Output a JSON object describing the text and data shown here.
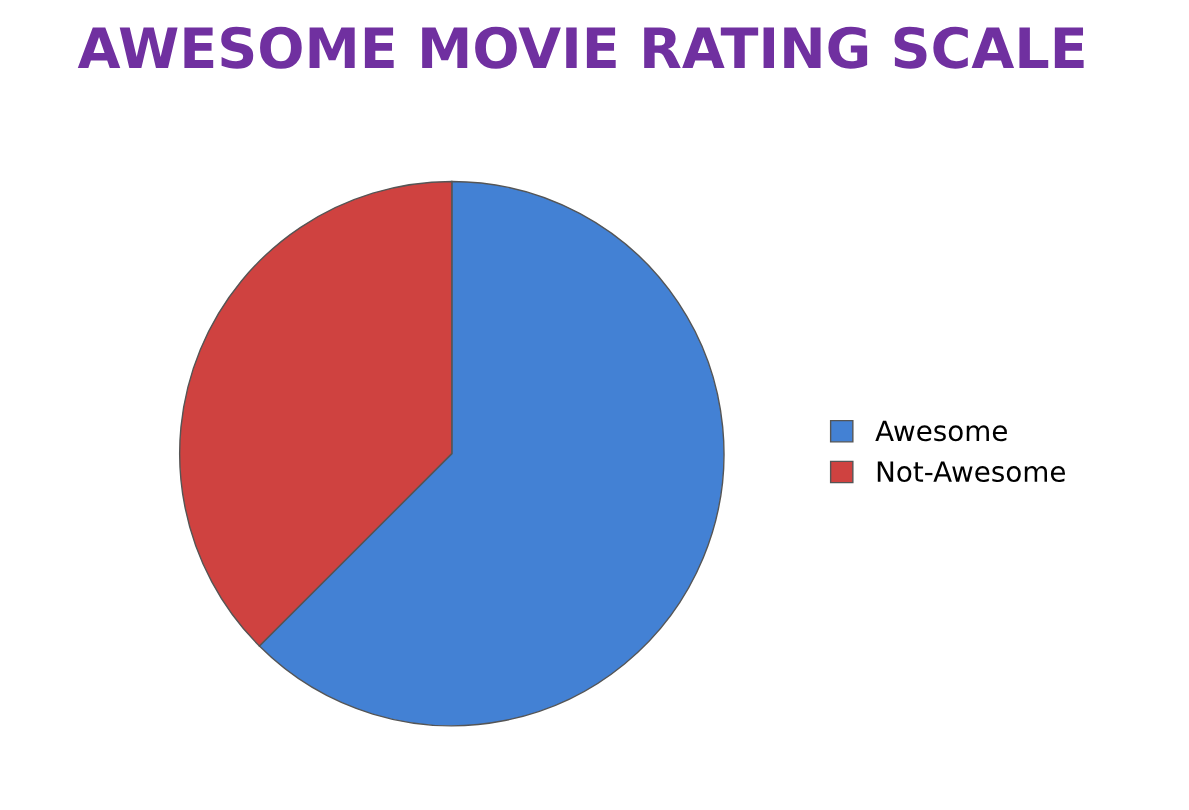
{
  "chart_data": {
    "type": "pie",
    "title": "AWESOME MOVIE RATING SCALE",
    "categories": [
      "Awesome",
      "Not-Awesome"
    ],
    "values": [
      62.5,
      37.5
    ],
    "colors": [
      "#4381d4",
      "#cf4240"
    ],
    "legend": "right"
  }
}
